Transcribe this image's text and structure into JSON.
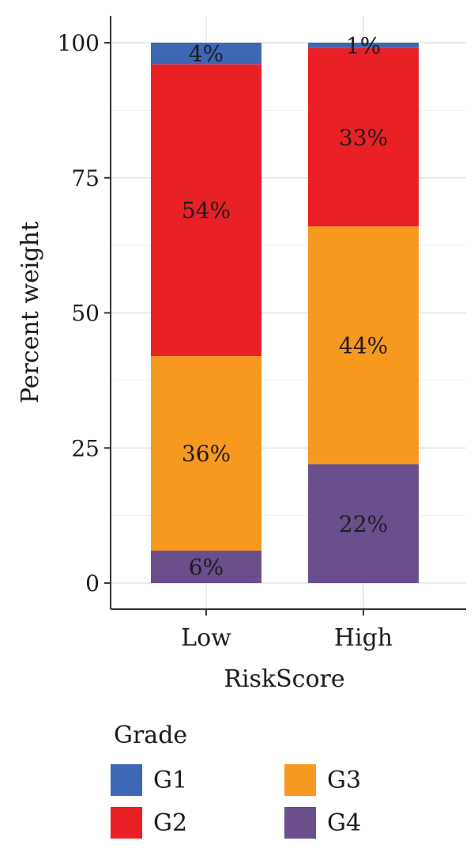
{
  "chart_data": {
    "type": "bar",
    "stacked": true,
    "xlabel": "RiskScore",
    "ylabel": "Percent weight",
    "categories": [
      "Low",
      "High"
    ],
    "ylim": [
      0,
      100
    ],
    "yticks": [
      0,
      25,
      50,
      75,
      100
    ],
    "grid": true,
    "series": [
      {
        "name": "G4",
        "values": [
          6,
          22
        ],
        "labels": [
          "6%",
          "22%"
        ],
        "color": "#6a4f8c"
      },
      {
        "name": "G3",
        "values": [
          36,
          44
        ],
        "labels": [
          "36%",
          "44%"
        ],
        "color": "#f7991f"
      },
      {
        "name": "G2",
        "values": [
          54,
          33
        ],
        "labels": [
          "54%",
          "33%"
        ],
        "color": "#ea2027"
      },
      {
        "name": "G1",
        "values": [
          4,
          1
        ],
        "labels": [
          "4%",
          "1%"
        ],
        "color": "#3d68b6"
      }
    ],
    "legend": {
      "title": "Grade",
      "position": "bottom",
      "items": [
        {
          "name": "G1",
          "color": "#3d68b6"
        },
        {
          "name": "G3",
          "color": "#f7991f"
        },
        {
          "name": "G2",
          "color": "#ea2027"
        },
        {
          "name": "G4",
          "color": "#6a4f8c"
        }
      ]
    }
  }
}
